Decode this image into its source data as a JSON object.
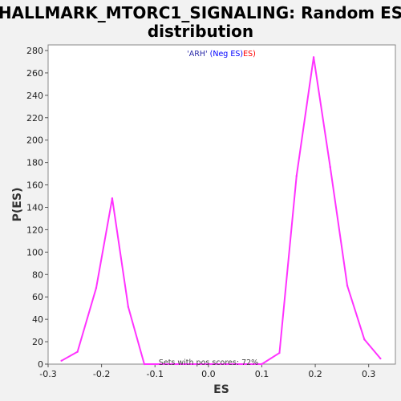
{
  "chart_data": {
    "type": "line",
    "title_line1": "HALLMARK_MTORC1_SIGNALING: Random ES",
    "title_line2": "distribution",
    "xlabel": "ES",
    "ylabel": "P(ES)",
    "xlim": [
      -0.3,
      0.35
    ],
    "ylim": [
      0,
      285
    ],
    "xticks": [
      -0.3,
      -0.2,
      -0.1,
      0.0,
      0.1,
      0.2,
      0.3
    ],
    "xtick_labels": [
      "-0.3",
      "-0.2",
      "-0.1",
      "0.0",
      "0.1",
      "0.2",
      "0.3"
    ],
    "yticks": [
      0,
      20,
      40,
      60,
      80,
      100,
      120,
      140,
      160,
      180,
      200,
      220,
      240,
      260,
      280
    ],
    "ytick_labels": [
      "0",
      "20",
      "40",
      "60",
      "80",
      "100",
      "120",
      "140",
      "160",
      "180",
      "200",
      "220",
      "240",
      "260",
      "280"
    ],
    "grid": false,
    "series": [
      {
        "color": "#ff33ff",
        "x": [
          -0.275,
          -0.245,
          -0.21,
          -0.18,
          -0.15,
          -0.12,
          -0.09,
          0.1,
          0.133,
          0.165,
          0.197,
          0.228,
          0.26,
          0.292,
          0.322
        ],
        "y": [
          3,
          11,
          68,
          148,
          51,
          0,
          0,
          0,
          10,
          168,
          274,
          176,
          70,
          22,
          5
        ]
      }
    ],
    "legend": {
      "arh_label": "'ARH'",
      "neg_label": "(Neg ES)",
      "pos_label": "ES)",
      "arh_color": "#2a2aa8",
      "neg_color": "#0000ff",
      "pos_color": "#ff0000"
    },
    "annotation": "Sets with pos scores: 72%"
  }
}
